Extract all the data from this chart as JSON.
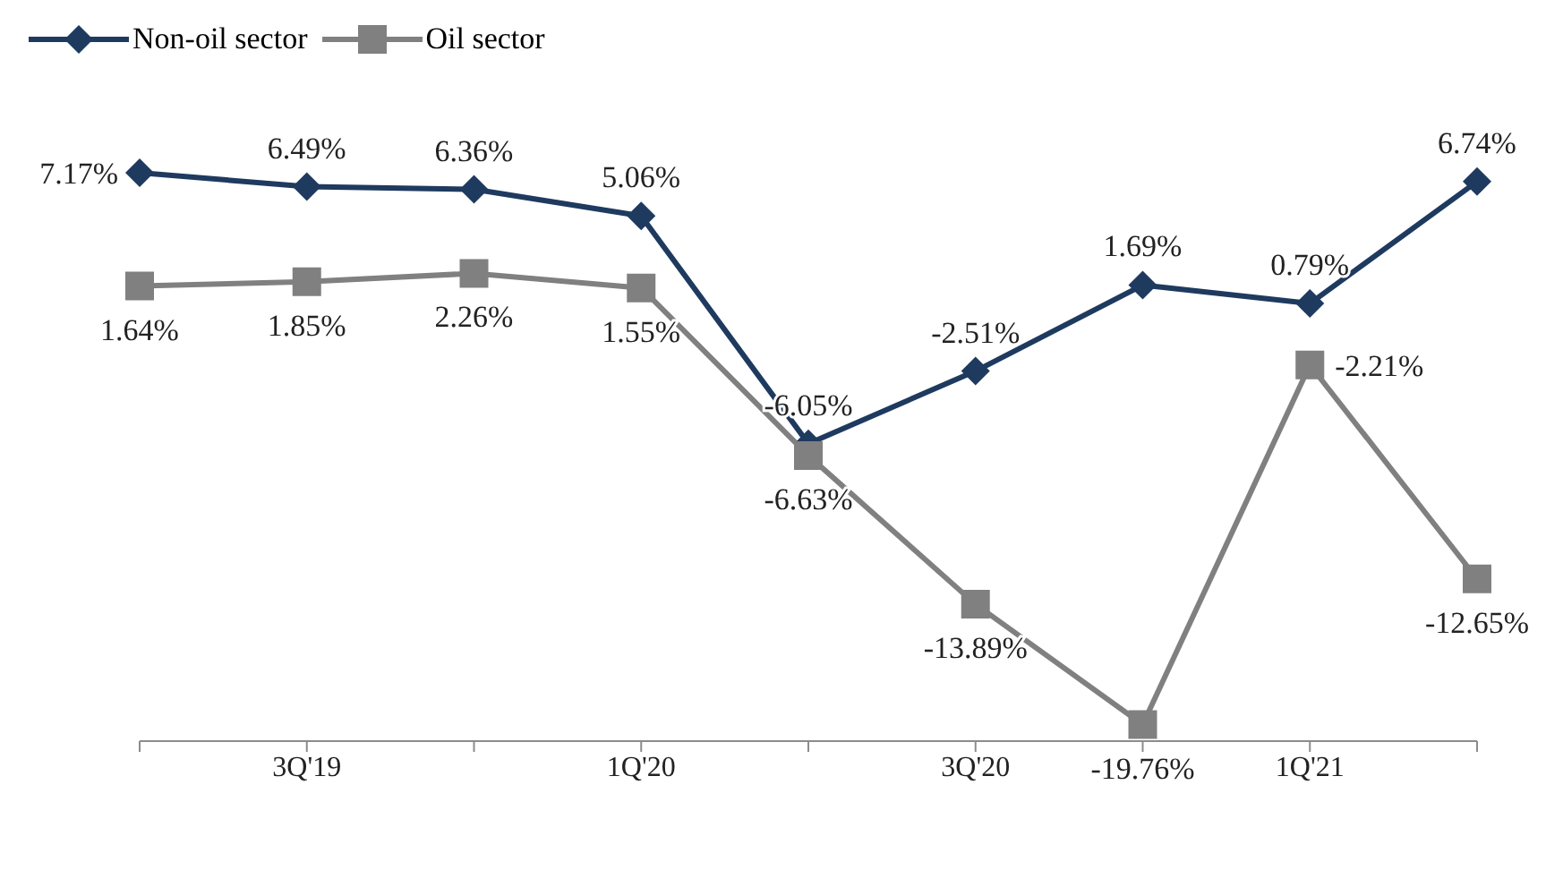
{
  "chart_data": {
    "type": "line",
    "categories": [
      null,
      "3Q'19",
      null,
      "1Q'20",
      null,
      "3Q'20",
      null,
      "1Q'21",
      null
    ],
    "series": [
      {
        "name": "Non-oil sector",
        "color": "#1f3a5f",
        "marker": "diamond",
        "values": [
          7.17,
          6.49,
          6.36,
          5.06,
          -6.05,
          -2.51,
          1.69,
          0.79,
          6.74
        ],
        "value_labels": [
          "7.17%",
          "6.49%",
          "6.36%",
          "5.06%",
          "-6.05%",
          "-2.51%",
          "1.69%",
          "0.79%",
          "6.74%"
        ]
      },
      {
        "name": "Oil sector",
        "color": "#808080",
        "marker": "square",
        "values": [
          1.64,
          1.85,
          2.26,
          1.55,
          -6.63,
          -13.89,
          -19.76,
          -2.21,
          -12.65
        ],
        "value_labels": [
          "1.64%",
          "1.85%",
          "2.26%",
          "1.55%",
          "-6.63%",
          "-13.89%",
          "-19.76%",
          "-2.21%",
          "-12.65%"
        ]
      }
    ],
    "tick_labels": "x",
    "grid": false,
    "legend": "top left",
    "line_style": "solid"
  }
}
